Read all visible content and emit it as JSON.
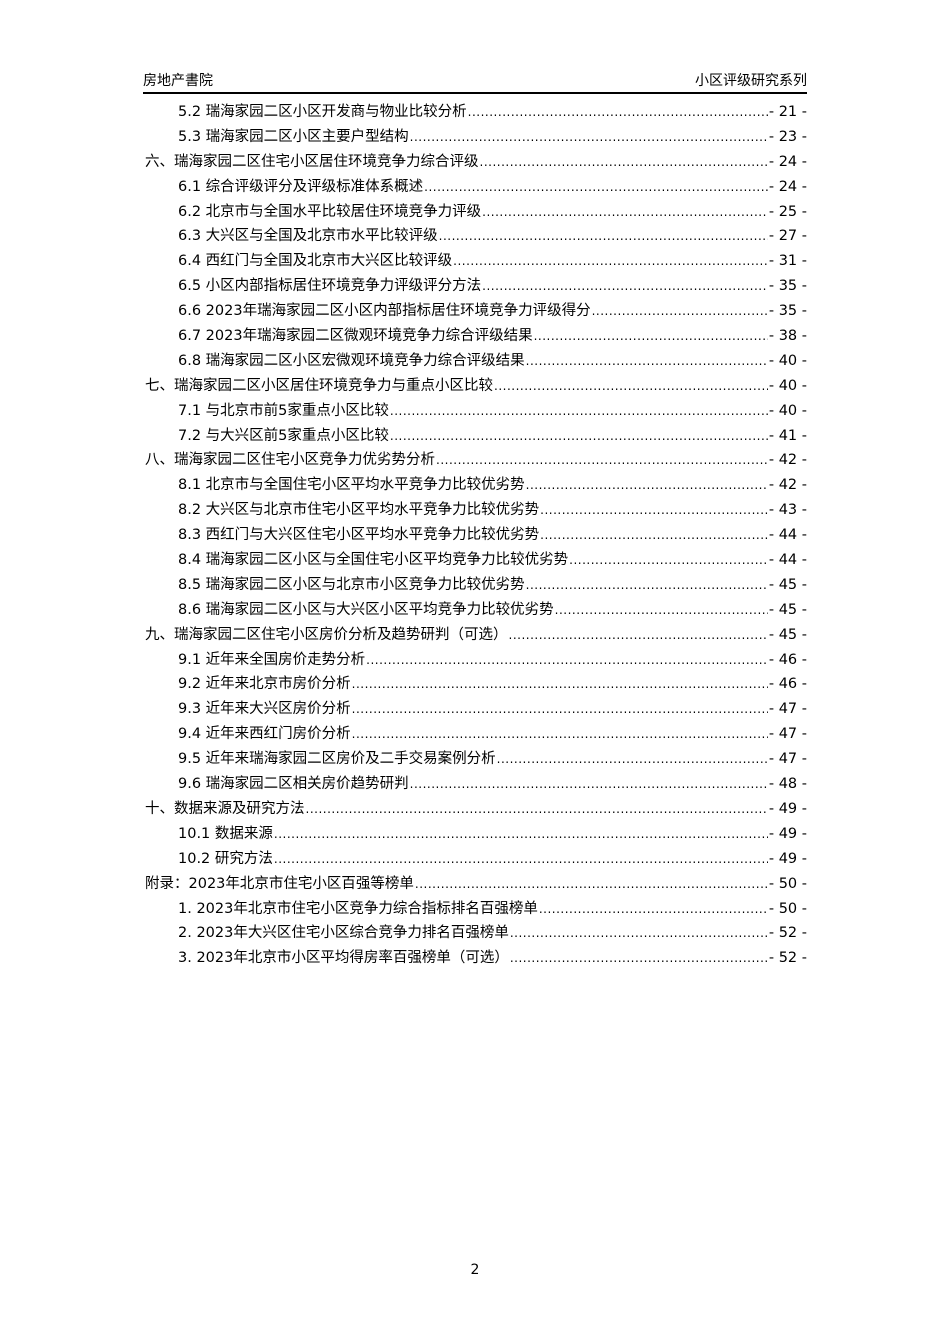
{
  "header": {
    "left": "房地产書院",
    "right": "小区评级研究系列"
  },
  "toc": [
    {
      "level": 2,
      "title": "5.2 瑞海家园二区小区开发商与物业比较分析",
      "page": "- 21 -"
    },
    {
      "level": 2,
      "title": "5.3 瑞海家园二区小区主要户型结构",
      "page": "- 23 -"
    },
    {
      "level": 1,
      "title": "六、瑞海家园二区住宅小区居住环境竞争力综合评级",
      "page": "- 24 -"
    },
    {
      "level": 2,
      "title": "6.1 综合评级评分及评级标准体系概述",
      "page": "- 24 -"
    },
    {
      "level": 2,
      "title": "6.2 北京市与全国水平比较居住环境竞争力评级",
      "page": "- 25 -"
    },
    {
      "level": 2,
      "title": "6.3 大兴区与全国及北京市水平比较评级",
      "page": "- 27 -"
    },
    {
      "level": 2,
      "title": "6.4 西红门与全国及北京市大兴区比较评级",
      "page": "- 31 -"
    },
    {
      "level": 2,
      "title": "6.5 小区内部指标居住环境竞争力评级评分方法",
      "page": "- 35 -"
    },
    {
      "level": 2,
      "title": "6.6 2023年瑞海家园二区小区内部指标居住环境竞争力评级得分",
      "page": "- 35 -"
    },
    {
      "level": 2,
      "title": "6.7 2023年瑞海家园二区微观环境竞争力综合评级结果",
      "page": "- 38 -"
    },
    {
      "level": 2,
      "title": "6.8 瑞海家园二区小区宏微观环境竞争力综合评级结果",
      "page": "- 40 -"
    },
    {
      "level": 1,
      "title": "七、瑞海家园二区小区居住环境竞争力与重点小区比较",
      "page": "- 40 -"
    },
    {
      "level": 2,
      "title": "7.1 与北京市前5家重点小区比较",
      "page": "- 40 -"
    },
    {
      "level": 2,
      "title": "7.2 与大兴区前5家重点小区比较",
      "page": "- 41 -"
    },
    {
      "level": 1,
      "title": "八、瑞海家园二区住宅小区竞争力优劣势分析",
      "page": "- 42 -"
    },
    {
      "level": 2,
      "title": "8.1 北京市与全国住宅小区平均水平竞争力比较优劣势",
      "page": "- 42 -"
    },
    {
      "level": 2,
      "title": "8.2 大兴区与北京市住宅小区平均水平竞争力比较优劣势",
      "page": "- 43 -"
    },
    {
      "level": 2,
      "title": "8.3 西红门与大兴区住宅小区平均水平竞争力比较优劣势",
      "page": "- 44 -"
    },
    {
      "level": 2,
      "title": "8.4 瑞海家园二区小区与全国住宅小区平均竞争力比较优劣势",
      "page": "- 44 -"
    },
    {
      "level": 2,
      "title": "8.5 瑞海家园二区小区与北京市小区竞争力比较优劣势",
      "page": "- 45 -"
    },
    {
      "level": 2,
      "title": "8.6 瑞海家园二区小区与大兴区小区平均竞争力比较优劣势",
      "page": "- 45 -"
    },
    {
      "level": 1,
      "title": "九、瑞海家园二区住宅小区房价分析及趋势研判（可选）",
      "page": "- 45 -"
    },
    {
      "level": 2,
      "title": "9.1 近年来全国房价走势分析",
      "page": "- 46 -"
    },
    {
      "level": 2,
      "title": "9.2 近年来北京市房价分析",
      "page": "- 46 -"
    },
    {
      "level": 2,
      "title": "9.3 近年来大兴区房价分析",
      "page": "- 47 -"
    },
    {
      "level": 2,
      "title": "9.4 近年来西红门房价分析",
      "page": "- 47 -"
    },
    {
      "level": 2,
      "title": "9.5 近年来瑞海家园二区房价及二手交易案例分析",
      "page": "- 47 -"
    },
    {
      "level": 2,
      "title": "9.6 瑞海家园二区相关房价趋势研判",
      "page": "- 48 -"
    },
    {
      "level": 1,
      "title": "十、数据来源及研究方法",
      "page": "- 49 -"
    },
    {
      "level": 2,
      "title": "10.1 数据来源",
      "page": "- 49 -"
    },
    {
      "level": 2,
      "title": "10.2 研究方法",
      "page": "- 49 -"
    },
    {
      "level": 1,
      "title": "附录：2023年北京市住宅小区百强等榜单",
      "page": "- 50 -"
    },
    {
      "level": 2,
      "title": "1. 2023年北京市住宅小区竞争力综合指标排名百强榜单",
      "page": "- 50 -"
    },
    {
      "level": 2,
      "title": "2. 2023年大兴区住宅小区综合竞争力排名百强榜单",
      "page": "- 52 -"
    },
    {
      "level": 2,
      "title": "3. 2023年北京市小区平均得房率百强榜单（可选）",
      "page": "- 52 -"
    }
  ],
  "footer": {
    "page_number": "2"
  }
}
